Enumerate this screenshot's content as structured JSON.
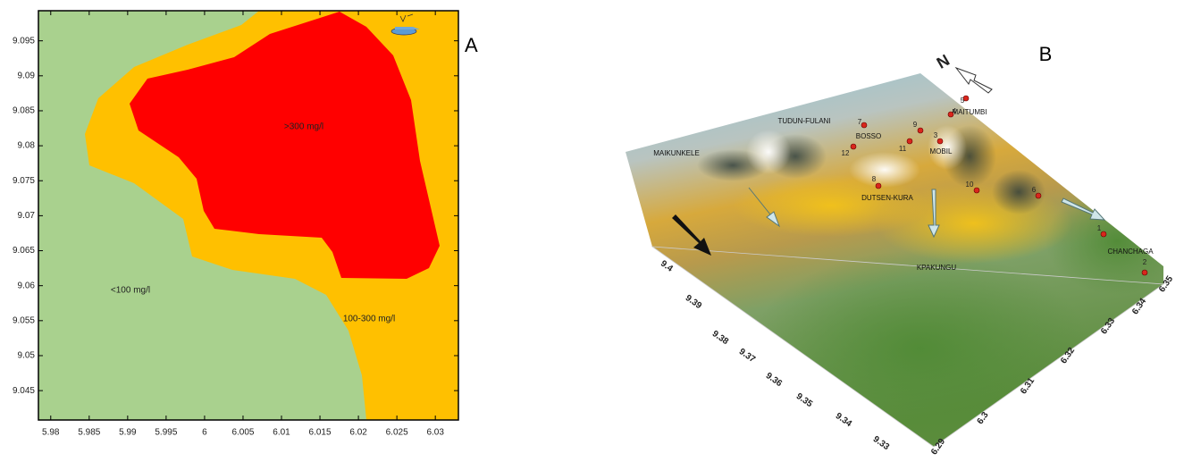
{
  "panel_a": {
    "label": "A",
    "xlim": [
      5.9784,
      6.033
    ],
    "ylim": [
      9.0408,
      9.0993
    ],
    "xticks": [
      5.98,
      5.985,
      5.99,
      5.995,
      6,
      6.005,
      6.01,
      6.015,
      6.02,
      6.025,
      6.03
    ],
    "yticks": [
      9.045,
      9.05,
      9.055,
      9.06,
      9.065,
      9.07,
      9.075,
      9.08,
      9.085,
      9.09,
      9.095
    ],
    "zones": [
      ">300 mg/l",
      "100-300 mg/l",
      "<100 mg/l"
    ]
  },
  "panel_b": {
    "label": "B",
    "north": "N",
    "places": [
      "MAITUMBI",
      "TUDUN-FULANI",
      "BOSSO",
      "MOBIL",
      "MAIKUNKELE",
      "DUTSEN-KURA",
      "CHANCHAGA",
      "KPAKUNGU"
    ],
    "stations": [
      "1",
      "2",
      "3",
      "4",
      "5",
      "6",
      "7",
      "8",
      "9",
      "10",
      "11",
      "12"
    ],
    "lat_ticks": [
      "9.4",
      "9.39",
      "9.38",
      "9.37",
      "9.36",
      "9.35",
      "9.34",
      "9.33"
    ],
    "lon_ticks": [
      "6.29",
      "6.3",
      "6.31",
      "6.32",
      "6.33",
      "6.34",
      "6.35"
    ]
  }
}
